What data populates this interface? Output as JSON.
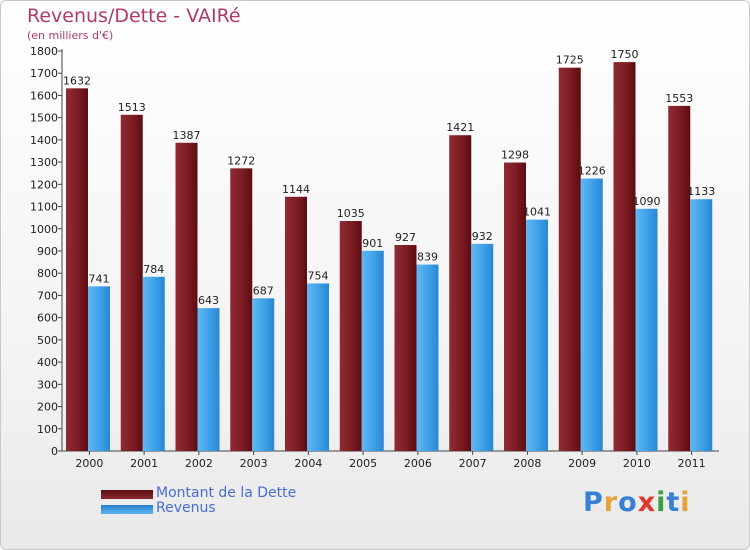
{
  "chart_data": {
    "type": "bar",
    "title": "Revenus/Dette - VAIRé",
    "subtitle": "(en milliers d'€)",
    "categories": [
      "2000",
      "2001",
      "2002",
      "2003",
      "2004",
      "2005",
      "2006",
      "2007",
      "2008",
      "2009",
      "2010",
      "2011"
    ],
    "series": [
      {
        "name": "Montant de la Dette",
        "color": "#7a1a22",
        "values": [
          1632,
          1513,
          1387,
          1272,
          1144,
          1035,
          927,
          1421,
          1298,
          1725,
          1750,
          1553
        ]
      },
      {
        "name": "Revenus",
        "color": "#3a9ee6",
        "values": [
          741,
          784,
          643,
          687,
          754,
          901,
          839,
          932,
          1041,
          1226,
          1090,
          1133
        ]
      }
    ],
    "ylim": [
      0,
      1800
    ],
    "yticks": [
      0,
      100,
      200,
      300,
      400,
      500,
      600,
      700,
      800,
      900,
      1000,
      1100,
      1200,
      1300,
      1400,
      1500,
      1600,
      1700,
      1800
    ],
    "grid": false,
    "legend": "bottom-left"
  },
  "legend": {
    "items": [
      {
        "label": "Montant de la Dette",
        "color": "#7a1a22"
      },
      {
        "label": "Revenus",
        "color": "#3a9ee6"
      }
    ]
  },
  "logo": {
    "text": "Proxiti"
  }
}
